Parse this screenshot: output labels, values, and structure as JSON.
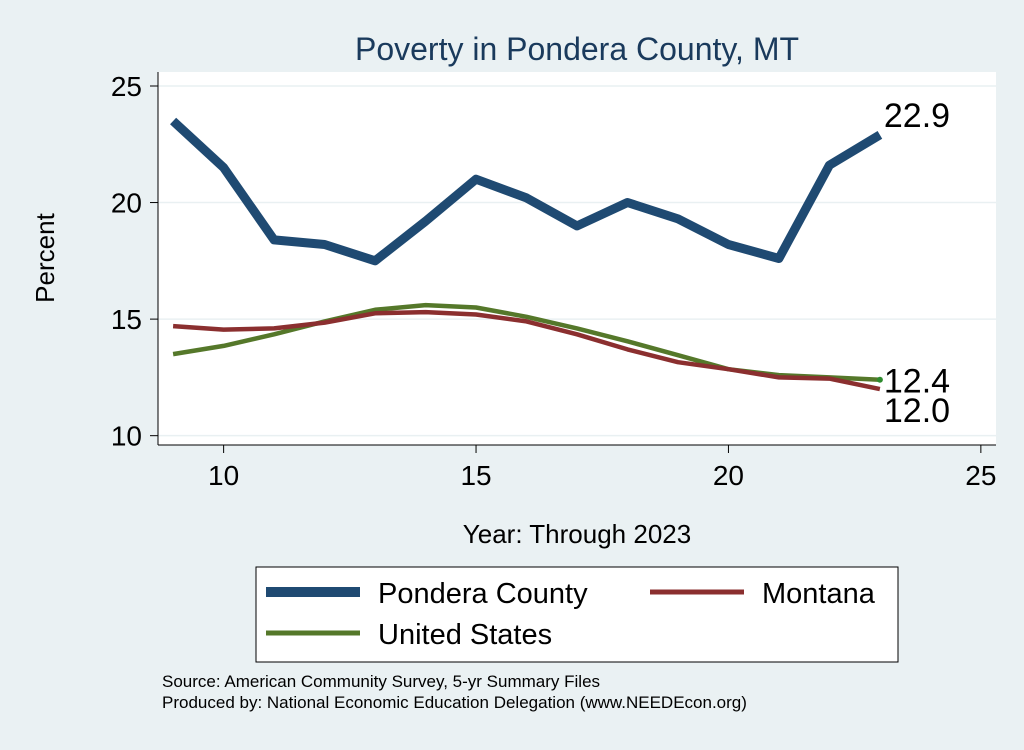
{
  "colors": {
    "background": "#eaf1f3",
    "plot_background": "#ffffff",
    "title": "#1a3a5c",
    "grid": "#e9f0f2",
    "pondera": "#1f4a72",
    "montana": "#8b2f2f",
    "united_states": "#55782a"
  },
  "chart_data": {
    "type": "line",
    "title": "Poverty in Pondera County, MT",
    "xlabel": "Year: Through 2023",
    "ylabel": "Percent",
    "xlim": [
      8.7,
      25.3
    ],
    "ylim": [
      9.6,
      25.6
    ],
    "grid": true,
    "legend_position": "bottom",
    "x_ticks": [
      10,
      15,
      20,
      25
    ],
    "y_ticks": [
      10,
      15,
      20,
      25
    ],
    "x": [
      9,
      10,
      11,
      12,
      13,
      14,
      15,
      16,
      17,
      18,
      19,
      20,
      21,
      22,
      23
    ],
    "series": [
      {
        "name": "Pondera County",
        "color": "#1f4a72",
        "values": [
          23.5,
          21.5,
          18.4,
          18.2,
          17.5,
          19.2,
          21.0,
          20.2,
          19.0,
          20.0,
          19.3,
          18.2,
          17.6,
          21.6,
          22.9
        ],
        "end_label": "22.9"
      },
      {
        "name": "Montana",
        "color": "#8b2f2f",
        "values": [
          14.7,
          14.55,
          14.6,
          14.85,
          15.25,
          15.3,
          15.2,
          14.9,
          14.35,
          13.7,
          13.15,
          12.85,
          12.5,
          12.45,
          12.0
        ],
        "end_label": "12.0"
      },
      {
        "name": "United States",
        "color": "#55782a",
        "values": [
          13.5,
          13.85,
          14.35,
          14.9,
          15.4,
          15.6,
          15.5,
          15.1,
          14.6,
          14.05,
          13.45,
          12.85,
          12.6,
          12.5,
          12.4
        ],
        "end_label": "12.4"
      }
    ]
  },
  "legend": {
    "items": [
      {
        "label": "Pondera County"
      },
      {
        "label": "Montana"
      },
      {
        "label": "United States"
      }
    ]
  },
  "source": {
    "line1": "Source: American Community Survey, 5-yr Summary Files",
    "line2": "Produced by: National Economic Education Delegation (www.NEEDEcon.org)"
  }
}
